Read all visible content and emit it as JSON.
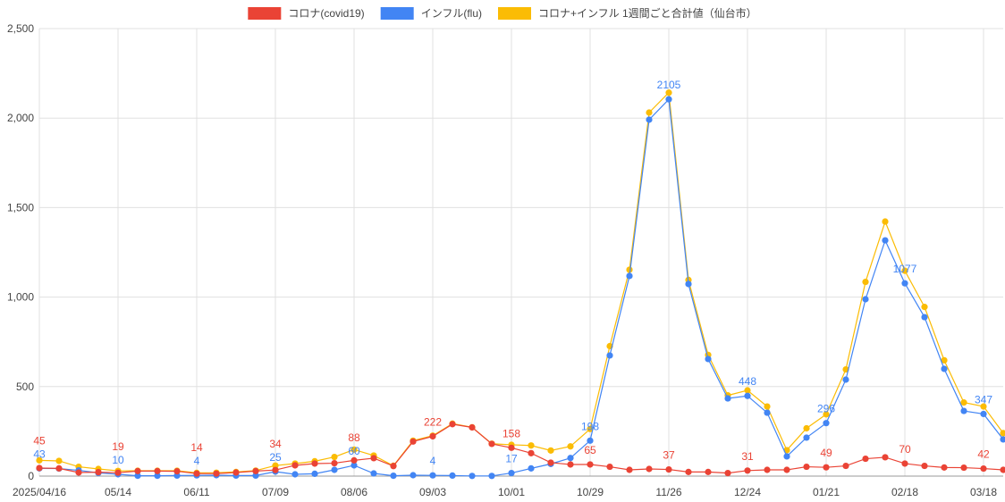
{
  "chart_data": {
    "type": "line",
    "title": "",
    "xlabel": "",
    "ylabel": "",
    "ylim": [
      0,
      2500
    ],
    "y_ticks": [
      "0",
      "500",
      "1,000",
      "1,500",
      "2,000",
      "2,500"
    ],
    "y_tick_values": [
      0,
      500,
      1000,
      1500,
      2000,
      2500
    ],
    "grid": true,
    "legend_position": "top",
    "x_tick_labels": [
      "2025/04/16",
      "05/14",
      "06/11",
      "07/09",
      "08/06",
      "09/03",
      "10/01",
      "10/29",
      "11/26",
      "12/24",
      "01/21",
      "02/18",
      "03/18"
    ],
    "x_tick_every": 4,
    "label_every": 4,
    "point_count": 50,
    "series": [
      {
        "name": "コロナ(covid19)",
        "color": "#ea4335",
        "values": [
          45,
          43,
          20,
          22,
          19,
          28,
          28,
          27,
          14,
          14,
          20,
          28,
          34,
          60,
          70,
          72,
          88,
          100,
          56,
          193,
          222,
          290,
          272,
          180,
          158,
          128,
          75,
          65,
          65,
          52,
          35,
          40,
          37,
          23,
          23,
          17,
          31,
          35,
          35,
          52,
          49,
          57,
          97,
          105,
          70,
          57,
          48,
          47,
          42,
          35
        ]
      },
      {
        "name": "インフル(flu)",
        "color": "#4285f4",
        "values": [
          43,
          42,
          32,
          18,
          10,
          2,
          2,
          3,
          4,
          5,
          3,
          3,
          25,
          10,
          13,
          35,
          60,
          15,
          2,
          5,
          4,
          3,
          1,
          1,
          17,
          43,
          68,
          101,
          198,
          674,
          1118,
          1991,
          2105,
          1073,
          654,
          434,
          448,
          354,
          110,
          215,
          296,
          539,
          988,
          1317,
          1077,
          888,
          599,
          364,
          347,
          205
        ]
      },
      {
        "name": "コロナ+インフル 1週間ごと合計値（仙台市）",
        "color": "#fbbc04",
        "values": []
      }
    ]
  }
}
